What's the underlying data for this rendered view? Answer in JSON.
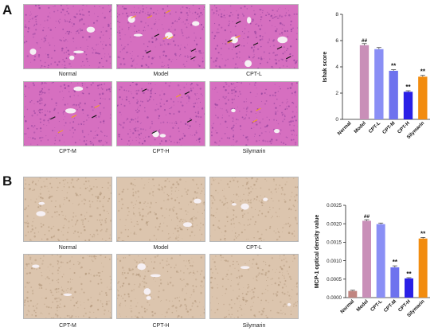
{
  "figure": {
    "panels": [
      {
        "letter": "A",
        "stain": "he",
        "images": [
          {
            "label": "Normal"
          },
          {
            "label": "Model"
          },
          {
            "label": "CPT-L"
          },
          {
            "label": "CPT-M"
          },
          {
            "label": "CPT-H"
          },
          {
            "label": "Silymarin"
          }
        ]
      },
      {
        "letter": "B",
        "stain": "ihc",
        "images": [
          {
            "label": "Normal"
          },
          {
            "label": "Model"
          },
          {
            "label": "CPT-L"
          },
          {
            "label": "CPT-M"
          },
          {
            "label": "CPT-H"
          },
          {
            "label": "Silymarin"
          }
        ]
      }
    ],
    "colors": {
      "he_bg": "#d66fc0",
      "he_dark": "#8e3f9a",
      "ihc_bg": "#dcc5ae",
      "ihc_dark": "#b3987c",
      "arrow_black": "#111111",
      "arrow_orange": "#f0a020"
    }
  },
  "chart_data": [
    {
      "type": "bar",
      "categories": [
        "Normal",
        "Model",
        "CPT-L",
        "CPT-M",
        "CPT-H",
        "Silymarin"
      ],
      "values": [
        0,
        5.65,
        5.35,
        3.7,
        2.1,
        3.25
      ],
      "errors": [
        0,
        0.12,
        0.12,
        0.08,
        0.08,
        0.1
      ],
      "colors": [
        "#999999",
        "#c98fb8",
        "#8a8ff5",
        "#6e72ee",
        "#2a20e6",
        "#f28c0f"
      ],
      "significance": [
        "",
        "##",
        "",
        "**",
        "**",
        "**"
      ],
      "xlabel": "",
      "ylabel": "Ishak score",
      "ylim": [
        0,
        8
      ],
      "yticks": [
        "0",
        "2",
        "4",
        "6",
        "8"
      ]
    },
    {
      "type": "bar",
      "categories": [
        "Normal",
        "Model",
        "CPT-L",
        "CPT-M",
        "CPT-H",
        "Silymarin"
      ],
      "values": [
        0.00018,
        0.00208,
        0.00199,
        0.00082,
        0.00052,
        0.0016
      ],
      "errors": [
        2e-05,
        3e-05,
        3e-05,
        4e-05,
        2e-05,
        3e-05
      ],
      "colors": [
        "#c08580",
        "#c98fb8",
        "#8a8ff5",
        "#6e72ee",
        "#2a20e6",
        "#f28c0f"
      ],
      "significance": [
        "",
        "##",
        "",
        "**",
        "**",
        "**"
      ],
      "xlabel": "",
      "ylabel": "MCP-1 optical density value",
      "ylim": [
        0,
        0.0025
      ],
      "yticks": [
        "0.0000",
        "0.0005",
        "0.0010",
        "0.0015",
        "0.0020",
        "0.0025"
      ]
    }
  ]
}
